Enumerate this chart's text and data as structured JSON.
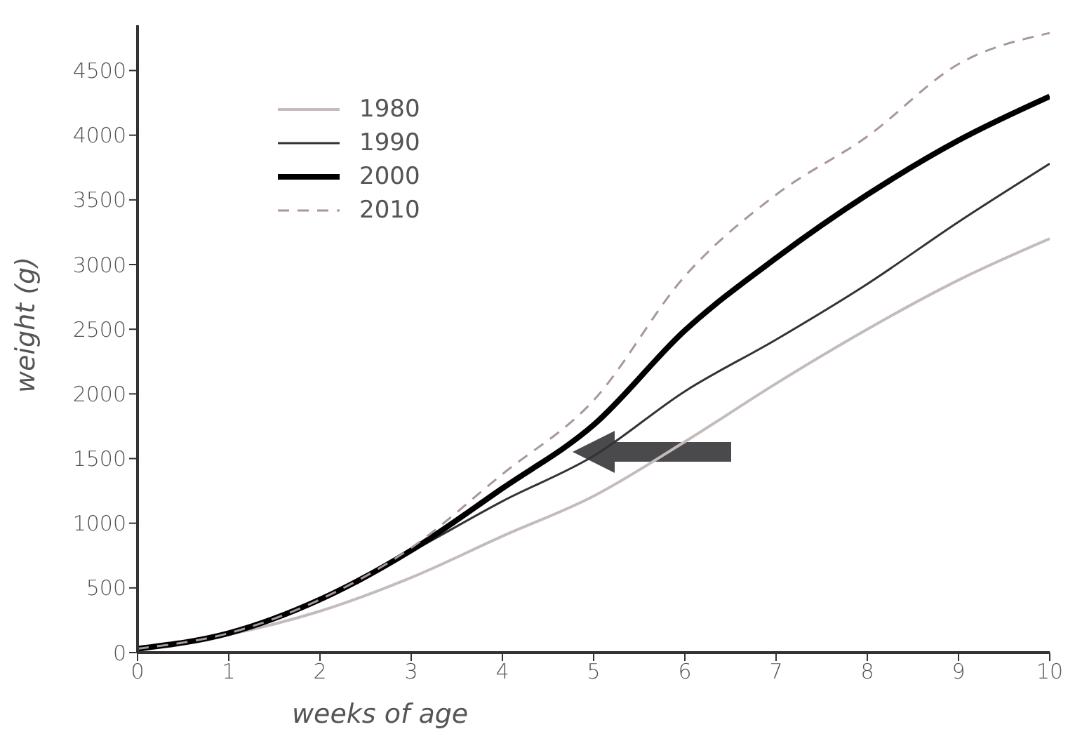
{
  "chart_data": {
    "type": "line",
    "xlabel": "weeks of age",
    "ylabel": "weight (g)",
    "x": [
      0,
      1,
      2,
      3,
      4,
      5,
      6,
      7,
      8,
      9,
      10
    ],
    "xlim": [
      0,
      10
    ],
    "xticks": [
      0,
      1,
      2,
      3,
      4,
      5,
      6,
      7,
      8,
      9,
      10
    ],
    "ylim": [
      0,
      4850
    ],
    "yticks": [
      0,
      500,
      1000,
      1500,
      2000,
      2500,
      3000,
      3500,
      4000,
      4500
    ],
    "grid": false,
    "legend": "top left",
    "marker": "none",
    "series": [
      {
        "name": "1980",
        "color": "#c4bcbc",
        "line_style": "solid",
        "values": [
          30,
          140,
          320,
          580,
          900,
          1210,
          1630,
          2080,
          2500,
          2880,
          3200
        ]
      },
      {
        "name": "1990",
        "color": "#333333",
        "line_style": "solid",
        "values": [
          30,
          150,
          410,
          780,
          1170,
          1520,
          2020,
          2420,
          2850,
          3330,
          3780
        ]
      },
      {
        "name": "2000",
        "color": "#000000",
        "line_style": "solid",
        "values": [
          30,
          150,
          410,
          790,
          1270,
          1760,
          2490,
          3050,
          3540,
          3960,
          4300
        ]
      },
      {
        "name": "2010",
        "color": "#a89898",
        "line_style": "dashed",
        "values": [
          30,
          150,
          410,
          810,
          1380,
          1950,
          2910,
          3540,
          3990,
          4550,
          4790
        ]
      }
    ]
  }
}
